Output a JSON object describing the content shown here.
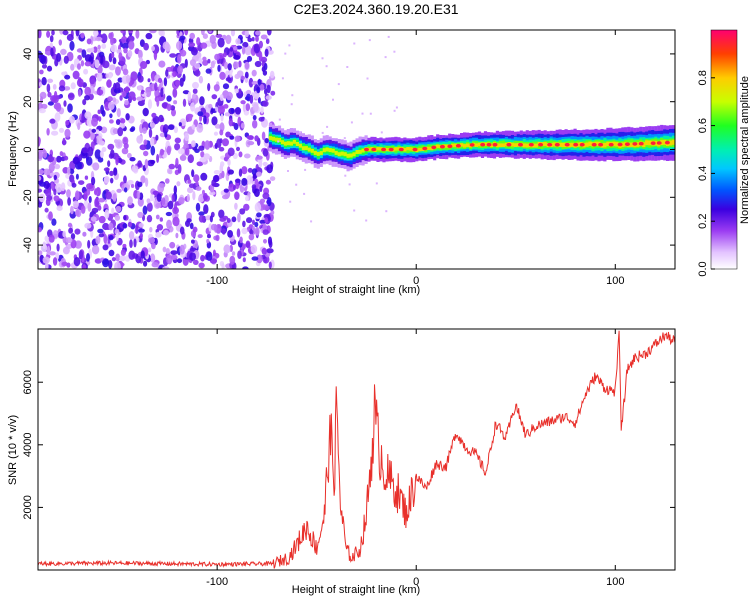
{
  "figure": {
    "title": "C2E3.2024.360.19.20.E31"
  },
  "chart_data": [
    {
      "type": "heatmap",
      "xlabel": "Height of straight line (km)",
      "ylabel": "Frequency (Hz)",
      "xlim": [
        -190,
        130
      ],
      "ylim": [
        -50,
        50
      ],
      "x_ticks": [
        -100,
        0,
        100
      ],
      "y_ticks": [
        -40,
        -20,
        0,
        20,
        40
      ],
      "grid": false,
      "noise_region_x": [
        -190,
        -72
      ],
      "ridge": [
        {
          "x": -74,
          "y": 5
        },
        {
          "x": -70,
          "y": 4
        },
        {
          "x": -66,
          "y": 2
        },
        {
          "x": -62,
          "y": 3
        },
        {
          "x": -58,
          "y": 1
        },
        {
          "x": -54,
          "y": 0
        },
        {
          "x": -50,
          "y": -2
        },
        {
          "x": -46,
          "y": 0
        },
        {
          "x": -42,
          "y": -1
        },
        {
          "x": -38,
          "y": -2
        },
        {
          "x": -34,
          "y": -3
        },
        {
          "x": -30,
          "y": -1
        },
        {
          "x": -25,
          "y": 0
        },
        {
          "x": -15,
          "y": 0
        },
        {
          "x": 0,
          "y": 0
        },
        {
          "x": 10,
          "y": 1
        },
        {
          "x": 30,
          "y": 2
        },
        {
          "x": 60,
          "y": 2
        },
        {
          "x": 100,
          "y": 2
        },
        {
          "x": 130,
          "y": 3
        }
      ],
      "colorbar": {
        "label": "Normalized spectral amplitude",
        "range": [
          0,
          1
        ],
        "ticks": [
          "0.0",
          "0.2",
          "0.4",
          "0.6",
          "0.8"
        ]
      }
    },
    {
      "type": "line",
      "xlabel": "Height of straight line (km)",
      "ylabel": "SNR (10 * v/v)",
      "xlim": [
        -190,
        130
      ],
      "ylim": [
        0,
        7700
      ],
      "x_ticks": [
        -100,
        0,
        100
      ],
      "y_ticks": [
        2000,
        4000,
        6000
      ],
      "grid": false,
      "series": [
        {
          "color": "#e8302b",
          "points": [
            {
              "x": -190,
              "y": 200
            },
            {
              "x": -150,
              "y": 220
            },
            {
              "x": -100,
              "y": 180
            },
            {
              "x": -72,
              "y": 200
            },
            {
              "x": -64,
              "y": 400
            },
            {
              "x": -60,
              "y": 800
            },
            {
              "x": -55,
              "y": 1400
            },
            {
              "x": -50,
              "y": 700
            },
            {
              "x": -46,
              "y": 1800
            },
            {
              "x": -44,
              "y": 3800
            },
            {
              "x": -43,
              "y": 4200
            },
            {
              "x": -41,
              "y": 3000
            },
            {
              "x": -40,
              "y": 5300
            },
            {
              "x": -38,
              "y": 2000
            },
            {
              "x": -35,
              "y": 600
            },
            {
              "x": -32,
              "y": 400
            },
            {
              "x": -28,
              "y": 700
            },
            {
              "x": -25,
              "y": 1800
            },
            {
              "x": -23,
              "y": 3200
            },
            {
              "x": -21,
              "y": 5000
            },
            {
              "x": -19,
              "y": 4000
            },
            {
              "x": -15,
              "y": 3000
            },
            {
              "x": -10,
              "y": 2600
            },
            {
              "x": -5,
              "y": 1800
            },
            {
              "x": 0,
              "y": 3000
            },
            {
              "x": 5,
              "y": 2600
            },
            {
              "x": 10,
              "y": 3400
            },
            {
              "x": 15,
              "y": 3300
            },
            {
              "x": 20,
              "y": 4400
            },
            {
              "x": 25,
              "y": 3900
            },
            {
              "x": 30,
              "y": 3700
            },
            {
              "x": 35,
              "y": 3100
            },
            {
              "x": 40,
              "y": 4700
            },
            {
              "x": 45,
              "y": 4200
            },
            {
              "x": 50,
              "y": 5300
            },
            {
              "x": 55,
              "y": 4300
            },
            {
              "x": 60,
              "y": 4600
            },
            {
              "x": 65,
              "y": 4700
            },
            {
              "x": 70,
              "y": 4800
            },
            {
              "x": 75,
              "y": 4900
            },
            {
              "x": 80,
              "y": 4700
            },
            {
              "x": 85,
              "y": 5600
            },
            {
              "x": 90,
              "y": 6200
            },
            {
              "x": 95,
              "y": 5800
            },
            {
              "x": 100,
              "y": 5700
            },
            {
              "x": 102,
              "y": 7600
            },
            {
              "x": 103,
              "y": 4400
            },
            {
              "x": 106,
              "y": 6400
            },
            {
              "x": 110,
              "y": 6800
            },
            {
              "x": 115,
              "y": 6900
            },
            {
              "x": 120,
              "y": 7200
            },
            {
              "x": 125,
              "y": 7500
            },
            {
              "x": 130,
              "y": 7300
            }
          ]
        }
      ]
    }
  ]
}
